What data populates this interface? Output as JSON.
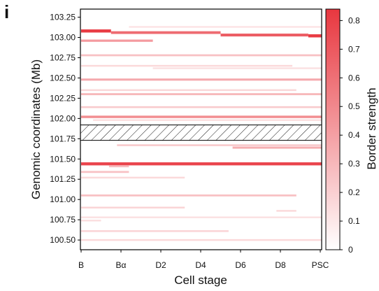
{
  "panel_label": "i",
  "chart_data": {
    "type": "heatmap",
    "xlabel": "Cell stage",
    "ylabel": "Genomic coordinates (Mb)",
    "colorbar_label": "Border strength",
    "categories": [
      "B",
      "Bα",
      "D2",
      "D4",
      "D6",
      "D8",
      "PSC"
    ],
    "y_ticks": [
      "103.25",
      "103.00",
      "102.75",
      "102.50",
      "102.25",
      "102.00",
      "101.75",
      "101.50",
      "101.25",
      "101.00",
      "100.75",
      "100.50"
    ],
    "ylim": [
      100.38,
      103.35
    ],
    "colorbar_ticks": [
      "0",
      "0.1",
      "0.2",
      "0.3",
      "0.4",
      "0.5",
      "0.6",
      "0.7",
      "0.8"
    ],
    "colorbar_range": [
      0,
      0.84
    ],
    "colors": {
      "low": "#ffffff",
      "high": "#e8373f",
      "hatch": "#000000"
    },
    "masked_region": [
      101.73,
      101.92
    ],
    "borders": [
      {
        "y": 103.08,
        "x_start": 0,
        "x_end": 0.75,
        "strength": 0.82
      },
      {
        "y": 103.06,
        "x_start": 0.75,
        "x_end": 3.5,
        "strength": 0.62
      },
      {
        "y": 103.03,
        "x_start": 3.5,
        "x_end": 5.7,
        "strength": 0.68
      },
      {
        "y": 103.02,
        "x_start": 5.7,
        "x_end": 6.5,
        "strength": 0.82
      },
      {
        "y": 103.13,
        "x_start": 1.2,
        "x_end": 6.5,
        "strength": 0.12
      },
      {
        "y": 102.96,
        "x_start": 0,
        "x_end": 1.8,
        "strength": 0.42
      },
      {
        "y": 102.78,
        "x_start": 0,
        "x_end": 6.5,
        "strength": 0.26
      },
      {
        "y": 102.65,
        "x_start": 0,
        "x_end": 5.3,
        "strength": 0.16
      },
      {
        "y": 102.62,
        "x_start": 1.8,
        "x_end": 6.5,
        "strength": 0.13
      },
      {
        "y": 102.48,
        "x_start": 0,
        "x_end": 6.5,
        "strength": 0.36
      },
      {
        "y": 102.35,
        "x_start": 0,
        "x_end": 5.4,
        "strength": 0.17
      },
      {
        "y": 102.3,
        "x_start": 0,
        "x_end": 6.5,
        "strength": 0.3
      },
      {
        "y": 102.14,
        "x_start": 0,
        "x_end": 6.5,
        "strength": 0.22
      },
      {
        "y": 102.02,
        "x_start": 0,
        "x_end": 6.5,
        "strength": 0.48
      },
      {
        "y": 101.98,
        "x_start": 0.3,
        "x_end": 6.5,
        "strength": 0.14
      },
      {
        "y": 101.67,
        "x_start": 0.9,
        "x_end": 6.5,
        "strength": 0.22
      },
      {
        "y": 101.64,
        "x_start": 3.8,
        "x_end": 6.5,
        "strength": 0.34
      },
      {
        "y": 101.44,
        "x_start": 0,
        "x_end": 6.5,
        "strength": 0.78
      },
      {
        "y": 101.41,
        "x_start": 0.7,
        "x_end": 1.2,
        "strength": 0.28
      },
      {
        "y": 101.34,
        "x_start": 0,
        "x_end": 1.2,
        "strength": 0.26
      },
      {
        "y": 101.27,
        "x_start": 0,
        "x_end": 2.6,
        "strength": 0.16
      },
      {
        "y": 101.05,
        "x_start": 0,
        "x_end": 5.4,
        "strength": 0.26
      },
      {
        "y": 100.9,
        "x_start": 0,
        "x_end": 2.6,
        "strength": 0.18
      },
      {
        "y": 100.86,
        "x_start": 4.9,
        "x_end": 5.4,
        "strength": 0.16
      },
      {
        "y": 100.78,
        "x_start": 0,
        "x_end": 6.5,
        "strength": 0.13
      },
      {
        "y": 100.74,
        "x_start": 0,
        "x_end": 0.5,
        "strength": 0.14
      },
      {
        "y": 100.61,
        "x_start": 0,
        "x_end": 3.7,
        "strength": 0.18
      },
      {
        "y": 100.5,
        "x_start": 0,
        "x_end": 6.5,
        "strength": 0.16
      }
    ]
  }
}
